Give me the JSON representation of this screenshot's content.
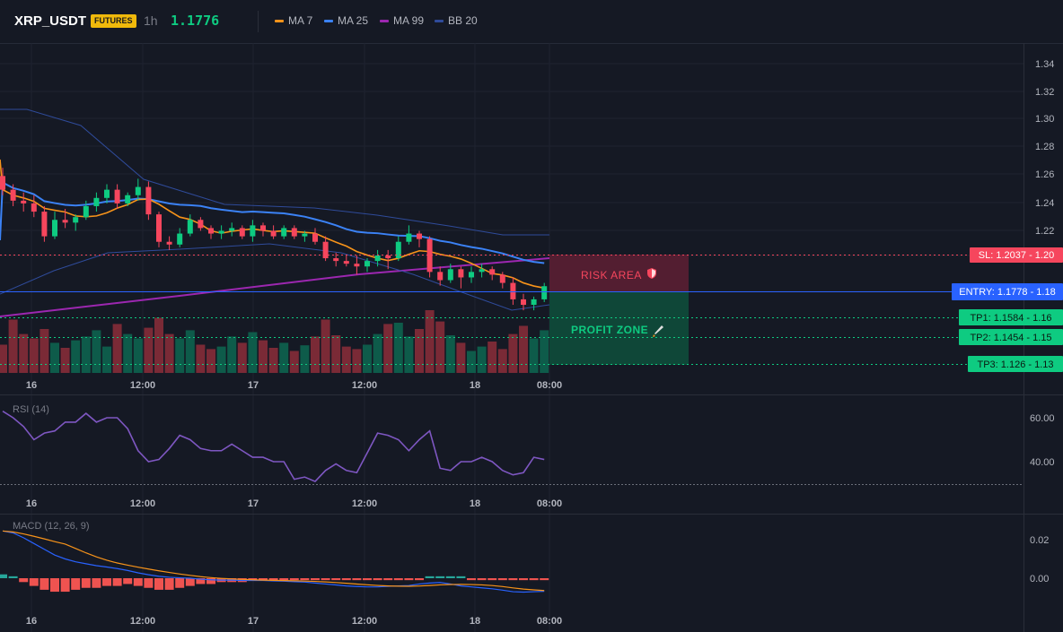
{
  "header": {
    "symbol": "XRP_USDT",
    "badge": "FUTURES",
    "timeframe": "1h",
    "price": "1.1776"
  },
  "indicators": [
    {
      "label": "MA 7",
      "color": "#f7931a"
    },
    {
      "label": "MA 25",
      "color": "#3b82f6"
    },
    {
      "label": "MA 99",
      "color": "#9c27b0"
    },
    {
      "label": "BB 20",
      "color": "#2f4b9a"
    }
  ],
  "colors": {
    "bull": "#0ecb81",
    "bear": "#f6465d",
    "entry": "#2962ff",
    "sl": "#f6465d",
    "tp": "#0ecb81"
  },
  "x_ticks": [
    "16",
    "12:00",
    "17",
    "12:00",
    "18",
    "08:00"
  ],
  "price_axis": {
    "ticks": [
      "1.34",
      "1.32",
      "1.30",
      "1.28",
      "1.26",
      "1.24",
      "1.22",
      "1.20",
      "1.18",
      "1.16",
      "1.15",
      "1.13"
    ]
  },
  "levels": {
    "sl": "SL: 1.2037 - 1.20",
    "entry": "ENTRY: 1.1778 - 1.18",
    "tp1": "TP1: 1.1584 - 1.16",
    "tp2": "TP2: 1.1454 - 1.15",
    "tp3": "TP3: 1.126 - 1.13"
  },
  "zones": {
    "risk": "RISK AREA",
    "profit": "PROFIT ZONE"
  },
  "rsi": {
    "label": "RSI (14)",
    "ticks": [
      "60.00",
      "40.00"
    ]
  },
  "macd": {
    "label": "MACD (12, 26, 9)",
    "ticks": [
      "0.02",
      "0.00"
    ]
  },
  "chart_data": {
    "type": "candlestick",
    "ylim": [
      1.12,
      1.35
    ],
    "candles": [
      {
        "o": 1.258,
        "h": 1.264,
        "l": 1.244,
        "c": 1.248
      },
      {
        "o": 1.248,
        "h": 1.252,
        "l": 1.236,
        "c": 1.24
      },
      {
        "o": 1.24,
        "h": 1.246,
        "l": 1.232,
        "c": 1.238
      },
      {
        "o": 1.238,
        "h": 1.244,
        "l": 1.228,
        "c": 1.232
      },
      {
        "o": 1.232,
        "h": 1.236,
        "l": 1.21,
        "c": 1.214
      },
      {
        "o": 1.214,
        "h": 1.232,
        "l": 1.212,
        "c": 1.226
      },
      {
        "o": 1.226,
        "h": 1.234,
        "l": 1.22,
        "c": 1.224
      },
      {
        "o": 1.224,
        "h": 1.23,
        "l": 1.218,
        "c": 1.228
      },
      {
        "o": 1.228,
        "h": 1.24,
        "l": 1.226,
        "c": 1.236
      },
      {
        "o": 1.236,
        "h": 1.246,
        "l": 1.232,
        "c": 1.242
      },
      {
        "o": 1.242,
        "h": 1.252,
        "l": 1.238,
        "c": 1.248
      },
      {
        "o": 1.248,
        "h": 1.252,
        "l": 1.234,
        "c": 1.238
      },
      {
        "o": 1.238,
        "h": 1.246,
        "l": 1.236,
        "c": 1.244
      },
      {
        "o": 1.244,
        "h": 1.256,
        "l": 1.24,
        "c": 1.25
      },
      {
        "o": 1.25,
        "h": 1.254,
        "l": 1.226,
        "c": 1.23
      },
      {
        "o": 1.23,
        "h": 1.232,
        "l": 1.206,
        "c": 1.21
      },
      {
        "o": 1.21,
        "h": 1.214,
        "l": 1.204,
        "c": 1.208
      },
      {
        "o": 1.208,
        "h": 1.22,
        "l": 1.206,
        "c": 1.216
      },
      {
        "o": 1.216,
        "h": 1.23,
        "l": 1.214,
        "c": 1.226
      },
      {
        "o": 1.226,
        "h": 1.228,
        "l": 1.218,
        "c": 1.22
      },
      {
        "o": 1.22,
        "h": 1.222,
        "l": 1.212,
        "c": 1.216
      },
      {
        "o": 1.216,
        "h": 1.222,
        "l": 1.212,
        "c": 1.218
      },
      {
        "o": 1.218,
        "h": 1.224,
        "l": 1.214,
        "c": 1.22
      },
      {
        "o": 1.22,
        "h": 1.222,
        "l": 1.212,
        "c": 1.214
      },
      {
        "o": 1.214,
        "h": 1.226,
        "l": 1.21,
        "c": 1.222
      },
      {
        "o": 1.222,
        "h": 1.224,
        "l": 1.214,
        "c": 1.218
      },
      {
        "o": 1.218,
        "h": 1.222,
        "l": 1.212,
        "c": 1.214
      },
      {
        "o": 1.214,
        "h": 1.222,
        "l": 1.212,
        "c": 1.22
      },
      {
        "o": 1.22,
        "h": 1.222,
        "l": 1.212,
        "c": 1.214
      },
      {
        "o": 1.214,
        "h": 1.218,
        "l": 1.21,
        "c": 1.216
      },
      {
        "o": 1.216,
        "h": 1.22,
        "l": 1.208,
        "c": 1.21
      },
      {
        "o": 1.21,
        "h": 1.214,
        "l": 1.196,
        "c": 1.198
      },
      {
        "o": 1.198,
        "h": 1.202,
        "l": 1.192,
        "c": 1.196
      },
      {
        "o": 1.196,
        "h": 1.2,
        "l": 1.192,
        "c": 1.194
      },
      {
        "o": 1.194,
        "h": 1.2,
        "l": 1.186,
        "c": 1.192
      },
      {
        "o": 1.192,
        "h": 1.198,
        "l": 1.188,
        "c": 1.196
      },
      {
        "o": 1.196,
        "h": 1.204,
        "l": 1.192,
        "c": 1.2
      },
      {
        "o": 1.2,
        "h": 1.204,
        "l": 1.19,
        "c": 1.198
      },
      {
        "o": 1.198,
        "h": 1.214,
        "l": 1.196,
        "c": 1.21
      },
      {
        "o": 1.21,
        "h": 1.222,
        "l": 1.208,
        "c": 1.216
      },
      {
        "o": 1.216,
        "h": 1.218,
        "l": 1.206,
        "c": 1.212
      },
      {
        "o": 1.212,
        "h": 1.214,
        "l": 1.184,
        "c": 1.188
      },
      {
        "o": 1.188,
        "h": 1.192,
        "l": 1.178,
        "c": 1.182
      },
      {
        "o": 1.182,
        "h": 1.194,
        "l": 1.18,
        "c": 1.19
      },
      {
        "o": 1.19,
        "h": 1.192,
        "l": 1.176,
        "c": 1.184
      },
      {
        "o": 1.184,
        "h": 1.192,
        "l": 1.18,
        "c": 1.188
      },
      {
        "o": 1.188,
        "h": 1.194,
        "l": 1.184,
        "c": 1.19
      },
      {
        "o": 1.19,
        "h": 1.192,
        "l": 1.182,
        "c": 1.186
      },
      {
        "o": 1.186,
        "h": 1.188,
        "l": 1.176,
        "c": 1.18
      },
      {
        "o": 1.18,
        "h": 1.184,
        "l": 1.164,
        "c": 1.168
      },
      {
        "o": 1.168,
        "h": 1.172,
        "l": 1.16,
        "c": 1.164
      },
      {
        "o": 1.164,
        "h": 1.17,
        "l": 1.16,
        "c": 1.168
      },
      {
        "o": 1.168,
        "h": 1.18,
        "l": 1.166,
        "c": 1.1776
      }
    ],
    "volume": [
      0.45,
      0.85,
      0.62,
      0.55,
      0.7,
      0.48,
      0.4,
      0.52,
      0.58,
      0.68,
      0.42,
      0.78,
      0.62,
      0.55,
      0.72,
      0.88,
      0.62,
      0.55,
      0.68,
      0.45,
      0.38,
      0.42,
      0.58,
      0.48,
      0.65,
      0.52,
      0.4,
      0.48,
      0.35,
      0.44,
      0.58,
      0.85,
      0.6,
      0.42,
      0.38,
      0.45,
      0.62,
      0.78,
      0.8,
      0.58,
      0.7,
      1.0,
      0.82,
      0.6,
      0.48,
      0.35,
      0.42,
      0.5,
      0.38,
      0.62,
      0.75,
      0.55,
      0.68
    ],
    "rsi": [
      63,
      60,
      56,
      50,
      53,
      54,
      58,
      58,
      62,
      58,
      60,
      60,
      55,
      45,
      40,
      41,
      46,
      52,
      50,
      46,
      45,
      45,
      48,
      45,
      42,
      42,
      40,
      40,
      32,
      33,
      31,
      36,
      39,
      36,
      35,
      44,
      53,
      52,
      50,
      45,
      50,
      54,
      37,
      36,
      40,
      40,
      42,
      40,
      36,
      34,
      35,
      42,
      41
    ],
    "macd_hist": [
      0.002,
      0.001,
      -0.002,
      -0.004,
      -0.006,
      -0.007,
      -0.007,
      -0.006,
      -0.005,
      -0.005,
      -0.004,
      -0.004,
      -0.003,
      -0.004,
      -0.005,
      -0.006,
      -0.006,
      -0.005,
      -0.004,
      -0.003,
      -0.003,
      -0.002,
      -0.002,
      -0.002,
      -0.001,
      -0.001,
      -0.001,
      -0.001,
      -0.001,
      -0.001,
      -0.001,
      -0.001,
      -0.001,
      -0.001,
      -0.001,
      -0.001,
      -0.001,
      -0.001,
      -0.001,
      -0.001,
      -0.001,
      0.001,
      0.001,
      0.001,
      0.001,
      -0.001,
      -0.001,
      -0.001,
      -0.001,
      -0.001,
      -0.001,
      -0.001,
      -0.001
    ],
    "macd_ylim": [
      -0.012,
      0.032
    ]
  }
}
